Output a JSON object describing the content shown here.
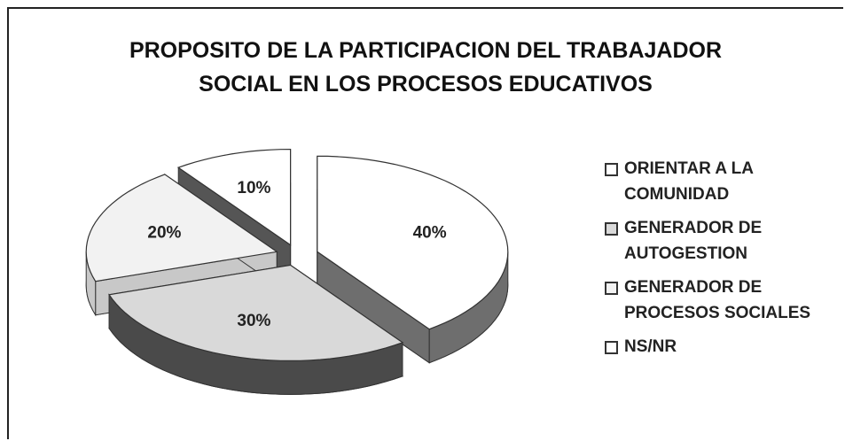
{
  "chart_data": {
    "type": "pie3d",
    "title": "PROPOSITO DE LA PARTICIPACION DEL TRABAJADOR SOCIAL EN LOS PROCESOS EDUCATIVOS",
    "categories": [
      "ORIENTAR  A LA COMUNIDAD",
      "GENERADOR DE AUTOGESTION",
      "GENERADOR DE PROCESOS SOCIALES",
      "NS/NR"
    ],
    "values": [
      40,
      30,
      20,
      10
    ],
    "value_labels": [
      "40%",
      "30%",
      "20%",
      "10%"
    ],
    "colors": [
      "#ffffff",
      "#d9d9d9",
      "#f2f2f2",
      "#ffffff"
    ],
    "side_colors": [
      "#6e6e6e",
      "#4a4a4a",
      "#c8c8c8",
      "#555555"
    ],
    "legend": "right"
  }
}
